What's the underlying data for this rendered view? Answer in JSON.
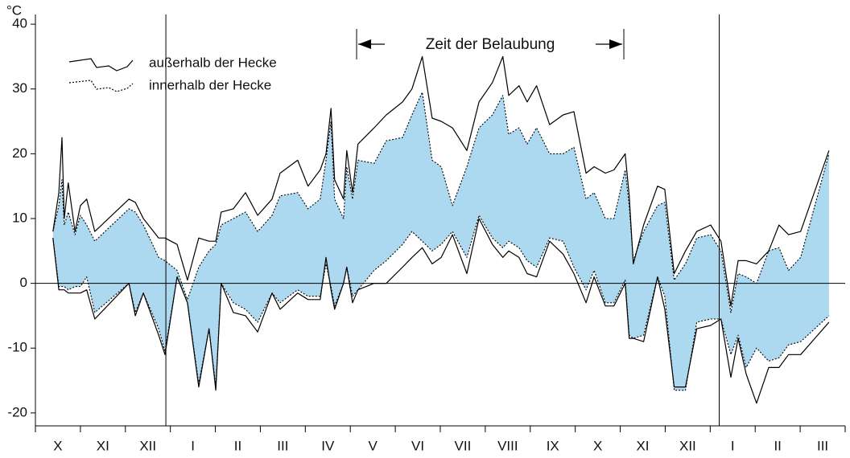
{
  "chart_data": {
    "type": "range-line",
    "y_label": "°C",
    "categories": [
      "X",
      "XI",
      "XII",
      "I",
      "II",
      "III",
      "IV",
      "V",
      "VI",
      "VII",
      "VIII",
      "IX",
      "X",
      "XI",
      "XII",
      "I",
      "II",
      "III"
    ],
    "xlim": [
      0,
      18
    ],
    "ylim": [
      -22,
      41.5
    ],
    "yticks": [
      -20,
      -10,
      0,
      10,
      20,
      30,
      40
    ],
    "reference_line": 0,
    "year_lines": [
      2.9,
      15.2
    ],
    "annotation": {
      "text": "Zeit der Belaubung",
      "x": [
        7.14,
        13.08
      ]
    },
    "x": [
      0.39,
      0.52,
      0.59,
      0.64,
      0.73,
      0.88,
      1.0,
      1.14,
      1.32,
      2.08,
      2.22,
      2.4,
      2.74,
      2.88,
      3.15,
      3.38,
      3.63,
      3.86,
      4.01,
      4.13,
      4.4,
      4.67,
      4.94,
      5.26,
      5.44,
      5.83,
      6.06,
      6.33,
      6.46,
      6.57,
      6.65,
      6.85,
      6.92,
      7.05,
      7.17,
      7.53,
      7.8,
      8.16,
      8.37,
      8.6,
      8.82,
      9.02,
      9.27,
      9.59,
      9.86,
      10.16,
      10.39,
      10.52,
      10.75,
      10.93,
      11.14,
      11.43,
      11.73,
      11.97,
      12.24,
      12.42,
      12.67,
      12.86,
      13.11,
      13.2,
      13.29,
      13.52,
      13.83,
      13.99,
      14.2,
      14.45,
      14.7,
      15.01,
      15.24,
      15.46,
      15.62,
      15.8,
      16.03,
      16.3,
      16.53,
      16.74,
      17.01,
      17.64
    ],
    "series": [
      {
        "name": "außerhalb der Hecke",
        "color": "#000000",
        "dashed": false,
        "upper": [
          8,
          14,
          22.5,
          10,
          15.5,
          8,
          12,
          13,
          8,
          13,
          12.5,
          10,
          7,
          7,
          6,
          0.5,
          7,
          6.5,
          6.5,
          11,
          11.5,
          14,
          10.5,
          13,
          17,
          19,
          15,
          17.5,
          20,
          27,
          16,
          13,
          20.5,
          14,
          21.5,
          24,
          26,
          28,
          30,
          35,
          25.5,
          25,
          24,
          20.5,
          28,
          31,
          35,
          29,
          30.5,
          28,
          30.5,
          24.5,
          26,
          26.5,
          17,
          18,
          17,
          17.5,
          20,
          13.5,
          3,
          9,
          15,
          14.5,
          1.5,
          5,
          8,
          9,
          6.5,
          -3.5,
          3.5,
          3.5,
          3,
          5,
          9,
          7.5,
          8,
          20.5
        ],
        "lower": [
          7,
          -1,
          -1,
          -1,
          -1.5,
          -1.5,
          -1.5,
          -1,
          -5.5,
          0,
          -5,
          -1.5,
          -8,
          -11,
          1,
          -3,
          -16,
          -7,
          -16.5,
          0,
          -4.5,
          -5,
          -7.5,
          -1.5,
          -4,
          -1.5,
          -2.5,
          -2.5,
          4,
          -1,
          -4,
          0,
          2.5,
          -3,
          -1,
          0,
          0,
          2.5,
          4,
          5.5,
          3,
          4,
          7.5,
          1.5,
          10,
          6,
          4,
          5,
          4,
          1.5,
          1,
          6.5,
          4.5,
          1.5,
          -3,
          1,
          -3.5,
          -3.5,
          0,
          -8.5,
          -8.5,
          -9,
          1,
          -4,
          -16,
          -16,
          -7,
          -6.5,
          -5.5,
          -14.5,
          -8.5,
          -14,
          -18.5,
          -13,
          -13,
          -11,
          -11,
          -6
        ]
      },
      {
        "name": "innerhalb der Hecke",
        "color": "#000000",
        "dashed": true,
        "fill": "#acd9f0",
        "upper": [
          8,
          12,
          16,
          9,
          11,
          7.5,
          10.5,
          9,
          6.5,
          11.5,
          11,
          9,
          4,
          3.5,
          2,
          -2.5,
          2.5,
          5,
          6,
          9,
          10,
          11,
          8,
          10.5,
          13.5,
          14,
          11.5,
          13,
          19,
          25,
          13,
          10,
          18,
          13,
          19,
          18.5,
          22,
          22.5,
          26,
          29.5,
          19,
          18,
          12,
          18,
          24,
          26,
          29,
          23,
          24,
          21.5,
          24,
          20,
          20,
          21,
          13,
          14,
          10,
          10,
          17.5,
          12,
          3.5,
          8,
          12,
          12.5,
          0.5,
          3,
          7,
          7.5,
          5,
          -4.5,
          1.5,
          1,
          0,
          5,
          5.5,
          2,
          4,
          20
        ],
        "lower": [
          7,
          -0.5,
          -0.5,
          -0.5,
          -1,
          -0.5,
          -0.5,
          1,
          -4.5,
          0,
          -4.5,
          -1.5,
          -7,
          -10.5,
          1,
          -3,
          -15.5,
          -7,
          -16,
          0,
          -3,
          -4,
          -6,
          -1.5,
          -3,
          -1,
          -2,
          -2,
          3,
          -0.5,
          -3.5,
          0,
          2.5,
          -2,
          -1,
          2,
          3.5,
          6,
          8,
          6.5,
          5,
          6,
          8,
          4,
          10.5,
          7,
          5.5,
          6.5,
          5.5,
          3.5,
          2.5,
          7,
          6.5,
          2.5,
          -1,
          2,
          -3,
          -3,
          0.5,
          -8,
          -8.5,
          -8,
          1,
          -2,
          -16.5,
          -16.5,
          -6,
          -5.5,
          -5.5,
          -11,
          -8,
          -13,
          -10,
          -12,
          -11.5,
          -9.5,
          -9,
          -5
        ]
      }
    ]
  }
}
